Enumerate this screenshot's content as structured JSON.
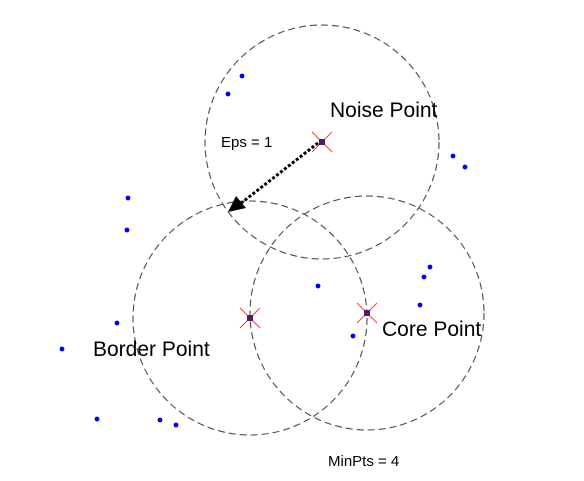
{
  "labels": {
    "noise": "Noise Point",
    "border": "Border Point",
    "core": "Core Point",
    "eps": "Eps = 1",
    "minpts": "MinPts = 4"
  },
  "colors": {
    "points": "#0000ee",
    "cross": "#ff3b3b",
    "circle_stroke": "#4a4a4a",
    "background": "#ffffff"
  }
}
